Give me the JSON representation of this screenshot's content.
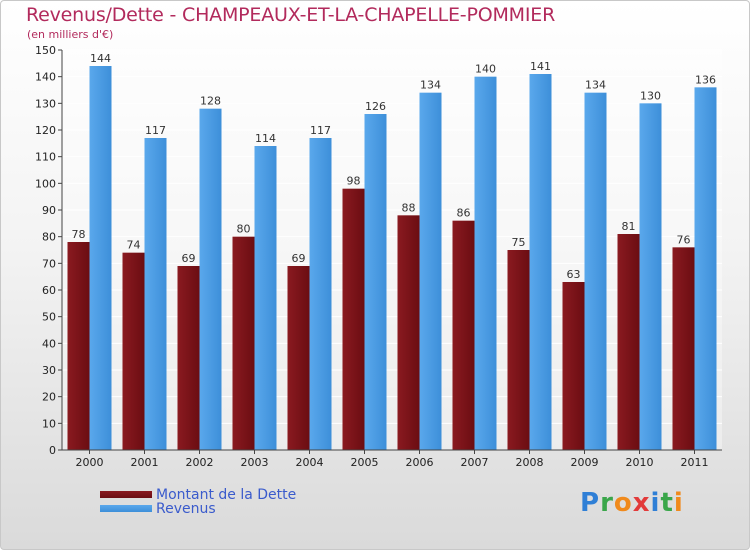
{
  "title": "Revenus/Dette - CHAMPEAUX-ET-LA-CHAPELLE-POMMIER",
  "subtitle": "(en milliers d'€)",
  "logo": "Proxiti",
  "colors": {
    "dette": "#6b0d12",
    "revenus": "#3d8fd9",
    "title": "#b22a5c",
    "legend_text": "#3a5bcc"
  },
  "chart_data": {
    "type": "bar",
    "categories": [
      "2000",
      "2001",
      "2002",
      "2003",
      "2004",
      "2005",
      "2006",
      "2007",
      "2008",
      "2009",
      "2010",
      "2011"
    ],
    "series": [
      {
        "name": "Montant de la Dette",
        "values": [
          78,
          74,
          69,
          80,
          69,
          98,
          88,
          86,
          75,
          63,
          81,
          76
        ]
      },
      {
        "name": "Revenus",
        "values": [
          144,
          117,
          128,
          114,
          117,
          126,
          134,
          140,
          141,
          134,
          130,
          136
        ]
      }
    ],
    "ylim": [
      0,
      150
    ],
    "yticks": [
      0,
      10,
      20,
      30,
      40,
      50,
      60,
      70,
      80,
      90,
      100,
      110,
      120,
      130,
      140,
      150
    ],
    "grid": true,
    "legend_position": "bottom-left"
  }
}
